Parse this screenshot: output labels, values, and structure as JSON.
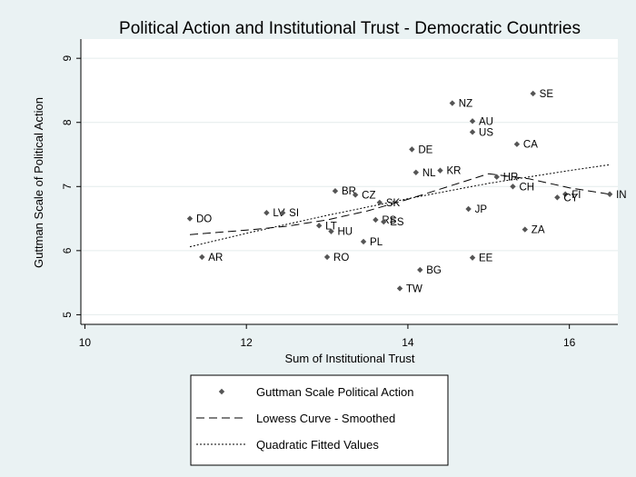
{
  "chart_data": {
    "type": "scatter",
    "title": "Political Action and Institutional Trust - Democratic Countries",
    "xlabel": "Sum of Institutional Trust",
    "ylabel": "Guttman Scale of Political Action",
    "xlim": [
      9.95,
      16.6
    ],
    "ylim": [
      4.85,
      9.3
    ],
    "xticks": [
      10,
      12,
      14,
      16
    ],
    "yticks": [
      5,
      6,
      7,
      8,
      9
    ],
    "grid": true,
    "legend_position": "bottom",
    "colors": {
      "background": "#eaf2f3",
      "plot_area": "#ffffff",
      "marker": "#555555",
      "line": "#000000",
      "grid": "#e4ecec"
    },
    "series": [
      {
        "name": "Guttman Scale Political Action",
        "kind": "scatter",
        "points": [
          {
            "label": "DO",
            "x": 11.3,
            "y": 6.5
          },
          {
            "label": "AR",
            "x": 11.45,
            "y": 5.9
          },
          {
            "label": "LV",
            "x": 12.25,
            "y": 6.59
          },
          {
            "label": "SI",
            "x": 12.45,
            "y": 6.59
          },
          {
            "label": "LT",
            "x": 12.9,
            "y": 6.39
          },
          {
            "label": "HU",
            "x": 13.05,
            "y": 6.3
          },
          {
            "label": "RO",
            "x": 13.0,
            "y": 5.9
          },
          {
            "label": "BR",
            "x": 13.1,
            "y": 6.93
          },
          {
            "label": "CZ",
            "x": 13.35,
            "y": 6.87
          },
          {
            "label": "SK",
            "x": 13.65,
            "y": 6.75
          },
          {
            "label": "PL",
            "x": 13.45,
            "y": 6.14
          },
          {
            "label": "RS",
            "x": 13.6,
            "y": 6.48
          },
          {
            "label": "ES",
            "x": 13.7,
            "y": 6.45
          },
          {
            "label": "TW",
            "x": 13.9,
            "y": 5.41
          },
          {
            "label": "BG",
            "x": 14.15,
            "y": 5.7
          },
          {
            "label": "DE",
            "x": 14.05,
            "y": 7.58
          },
          {
            "label": "NL",
            "x": 14.1,
            "y": 7.22
          },
          {
            "label": "KR",
            "x": 14.4,
            "y": 7.25
          },
          {
            "label": "NZ",
            "x": 14.55,
            "y": 8.3
          },
          {
            "label": "AU",
            "x": 14.8,
            "y": 8.02
          },
          {
            "label": "US",
            "x": 14.8,
            "y": 7.85
          },
          {
            "label": "JP",
            "x": 14.75,
            "y": 6.65
          },
          {
            "label": "EE",
            "x": 14.8,
            "y": 5.89
          },
          {
            "label": "HR",
            "x": 15.1,
            "y": 7.15
          },
          {
            "label": "CH",
            "x": 15.3,
            "y": 7.0
          },
          {
            "label": "CA",
            "x": 15.35,
            "y": 7.66
          },
          {
            "label": "SE",
            "x": 15.55,
            "y": 8.45
          },
          {
            "label": "ZA",
            "x": 15.45,
            "y": 6.33
          },
          {
            "label": "FI",
            "x": 15.95,
            "y": 6.88
          },
          {
            "label": "CY",
            "x": 15.85,
            "y": 6.83
          },
          {
            "label": "IN",
            "x": 16.5,
            "y": 6.88
          }
        ]
      },
      {
        "name": "Lowess Curve - Smoothed",
        "kind": "line",
        "style": "dashed",
        "points": [
          {
            "x": 11.3,
            "y": 6.25
          },
          {
            "x": 12.0,
            "y": 6.32
          },
          {
            "x": 12.5,
            "y": 6.38
          },
          {
            "x": 13.0,
            "y": 6.48
          },
          {
            "x": 13.5,
            "y": 6.62
          },
          {
            "x": 14.0,
            "y": 6.8
          },
          {
            "x": 14.5,
            "y": 7.0
          },
          {
            "x": 15.0,
            "y": 7.2
          },
          {
            "x": 15.5,
            "y": 7.12
          },
          {
            "x": 16.0,
            "y": 6.98
          },
          {
            "x": 16.5,
            "y": 6.88
          }
        ]
      },
      {
        "name": "Quadratic Fitted Values",
        "kind": "line",
        "style": "dotted",
        "points": [
          {
            "x": 11.3,
            "y": 6.06
          },
          {
            "x": 12.0,
            "y": 6.27
          },
          {
            "x": 12.5,
            "y": 6.41
          },
          {
            "x": 13.0,
            "y": 6.55
          },
          {
            "x": 13.5,
            "y": 6.68
          },
          {
            "x": 14.0,
            "y": 6.81
          },
          {
            "x": 14.5,
            "y": 6.93
          },
          {
            "x": 15.0,
            "y": 7.05
          },
          {
            "x": 15.5,
            "y": 7.15
          },
          {
            "x": 16.0,
            "y": 7.25
          },
          {
            "x": 16.5,
            "y": 7.34
          }
        ]
      }
    ]
  }
}
